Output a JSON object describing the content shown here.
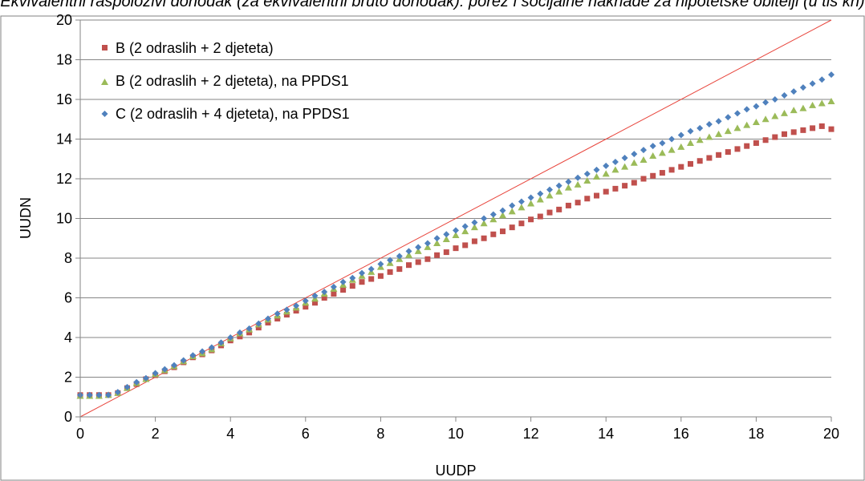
{
  "chart_data": {
    "type": "scatter",
    "title": "Ekvivalentni raspoloživi dohodak (za ekvivalentni bruto dohodak): porez i socijalne naknade za hipotetske obitelji (u tis kn)",
    "xlabel": "UUDP",
    "ylabel": "UUDN",
    "xlim": [
      0,
      20
    ],
    "ylim": [
      0,
      20
    ],
    "x_ticks": [
      "0",
      "2",
      "4",
      "6",
      "8",
      "10",
      "12",
      "14",
      "16",
      "18",
      "20"
    ],
    "y_ticks": [
      "0",
      "2",
      "4",
      "6",
      "8",
      "10",
      "12",
      "14",
      "16",
      "18",
      "20"
    ],
    "grid": "horizontal",
    "legend_position": "top-left",
    "reference_line": {
      "from": [
        0,
        0
      ],
      "to": [
        20,
        20
      ],
      "color": "#e8453c"
    },
    "series": [
      {
        "name": "B (2 odraslih + 2 djeteta)",
        "marker": "square",
        "color": "#c0504d",
        "x": [
          0,
          0.25,
          0.5,
          0.75,
          1,
          1.25,
          1.5,
          1.75,
          2,
          2.25,
          2.5,
          2.75,
          3,
          3.25,
          3.5,
          3.75,
          4,
          4.25,
          4.5,
          4.75,
          5,
          5.25,
          5.5,
          5.75,
          6,
          6.25,
          6.5,
          6.75,
          7,
          7.25,
          7.5,
          7.75,
          8,
          8.25,
          8.5,
          8.75,
          9,
          9.25,
          9.5,
          9.75,
          10,
          10.25,
          10.5,
          10.75,
          11,
          11.25,
          11.5,
          11.75,
          12,
          12.25,
          12.5,
          12.75,
          13,
          13.25,
          13.5,
          13.75,
          14,
          14.25,
          14.5,
          14.75,
          15,
          15.25,
          15.5,
          15.75,
          16,
          16.25,
          16.5,
          16.75,
          17,
          17.25,
          17.5,
          17.75,
          18,
          18.25,
          18.5,
          18.75,
          19,
          19.25,
          19.5,
          19.75,
          20
        ],
        "y": [
          1.1,
          1.1,
          1.1,
          1.1,
          1.2,
          1.45,
          1.65,
          1.9,
          2.1,
          2.3,
          2.5,
          2.75,
          3.0,
          3.15,
          3.35,
          3.6,
          3.85,
          4.05,
          4.25,
          4.5,
          4.75,
          4.95,
          5.15,
          5.35,
          5.55,
          5.75,
          6.0,
          6.2,
          6.4,
          6.6,
          6.8,
          6.95,
          7.1,
          7.3,
          7.45,
          7.65,
          7.8,
          7.95,
          8.15,
          8.3,
          8.5,
          8.65,
          8.85,
          9.0,
          9.2,
          9.35,
          9.55,
          9.75,
          9.95,
          10.1,
          10.3,
          10.45,
          10.65,
          10.8,
          11.0,
          11.15,
          11.35,
          11.5,
          11.65,
          11.8,
          12.0,
          12.15,
          12.3,
          12.45,
          12.6,
          12.75,
          12.9,
          13.05,
          13.2,
          13.35,
          13.5,
          13.65,
          13.8,
          13.95,
          14.1,
          14.25,
          14.35,
          14.45,
          14.55,
          14.65,
          14.5
        ]
      },
      {
        "name": "B (2 odraslih + 2 djeteta), na PPDS1",
        "marker": "triangle",
        "color": "#9bbb59",
        "x": [
          0,
          0.25,
          0.5,
          0.75,
          1,
          1.25,
          1.5,
          1.75,
          2,
          2.25,
          2.5,
          2.75,
          3,
          3.25,
          3.5,
          3.75,
          4,
          4.25,
          4.5,
          4.75,
          5,
          5.25,
          5.5,
          5.75,
          6,
          6.25,
          6.5,
          6.75,
          7,
          7.25,
          7.5,
          7.75,
          8,
          8.25,
          8.5,
          8.75,
          9,
          9.25,
          9.5,
          9.75,
          10,
          10.25,
          10.5,
          10.75,
          11,
          11.25,
          11.5,
          11.75,
          12,
          12.25,
          12.5,
          12.75,
          13,
          13.25,
          13.5,
          13.75,
          14,
          14.25,
          14.5,
          14.75,
          15,
          15.25,
          15.5,
          15.75,
          16,
          16.25,
          16.5,
          16.75,
          17,
          17.25,
          17.5,
          17.75,
          18,
          18.25,
          18.5,
          18.75,
          19,
          19.25,
          19.5,
          19.75,
          20
        ],
        "y": [
          1.05,
          1.05,
          1.05,
          1.1,
          1.2,
          1.45,
          1.7,
          1.9,
          2.15,
          2.35,
          2.55,
          2.8,
          3.05,
          3.2,
          3.4,
          3.7,
          3.95,
          4.2,
          4.4,
          4.65,
          4.9,
          5.1,
          5.3,
          5.5,
          5.75,
          5.95,
          6.2,
          6.45,
          6.65,
          6.9,
          7.1,
          7.3,
          7.55,
          7.75,
          7.95,
          8.15,
          8.35,
          8.55,
          8.75,
          8.95,
          9.15,
          9.35,
          9.55,
          9.75,
          9.95,
          10.15,
          10.35,
          10.55,
          10.75,
          10.95,
          11.15,
          11.35,
          11.55,
          11.7,
          11.9,
          12.1,
          12.25,
          12.45,
          12.6,
          12.8,
          12.95,
          13.15,
          13.3,
          13.45,
          13.6,
          13.8,
          13.95,
          14.1,
          14.25,
          14.4,
          14.55,
          14.7,
          14.85,
          15.0,
          15.15,
          15.3,
          15.45,
          15.55,
          15.7,
          15.8,
          15.9
        ]
      },
      {
        "name": "C (2 odraslih + 4 djeteta), na PPDS1",
        "marker": "diamond",
        "color": "#4f81bd",
        "x": [
          0,
          0.25,
          0.5,
          0.75,
          1,
          1.25,
          1.5,
          1.75,
          2,
          2.25,
          2.5,
          2.75,
          3,
          3.25,
          3.5,
          3.75,
          4,
          4.25,
          4.5,
          4.75,
          5,
          5.25,
          5.5,
          5.75,
          6,
          6.25,
          6.5,
          6.75,
          7,
          7.25,
          7.5,
          7.75,
          8,
          8.25,
          8.5,
          8.75,
          9,
          9.25,
          9.5,
          9.75,
          10,
          10.25,
          10.5,
          10.75,
          11,
          11.25,
          11.5,
          11.75,
          12,
          12.25,
          12.5,
          12.75,
          13,
          13.25,
          13.5,
          13.75,
          14,
          14.25,
          14.5,
          14.75,
          15,
          15.25,
          15.5,
          15.75,
          16,
          16.25,
          16.5,
          16.75,
          17,
          17.25,
          17.5,
          17.75,
          18,
          18.25,
          18.5,
          18.75,
          19,
          19.25,
          19.5,
          19.75,
          20
        ],
        "y": [
          1.1,
          1.1,
          1.1,
          1.1,
          1.25,
          1.5,
          1.75,
          1.95,
          2.2,
          2.4,
          2.6,
          2.85,
          3.1,
          3.3,
          3.5,
          3.75,
          4.0,
          4.25,
          4.45,
          4.7,
          4.95,
          5.2,
          5.4,
          5.6,
          5.85,
          6.1,
          6.3,
          6.55,
          6.8,
          7.0,
          7.25,
          7.45,
          7.7,
          7.9,
          8.1,
          8.35,
          8.55,
          8.75,
          9.0,
          9.2,
          9.4,
          9.6,
          9.8,
          10.0,
          10.2,
          10.4,
          10.65,
          10.85,
          11.05,
          11.25,
          11.45,
          11.65,
          11.85,
          12.05,
          12.25,
          12.45,
          12.65,
          12.85,
          13.05,
          13.25,
          13.45,
          13.65,
          13.8,
          14.0,
          14.2,
          14.4,
          14.55,
          14.75,
          14.9,
          15.1,
          15.3,
          15.5,
          15.65,
          15.85,
          16.0,
          16.2,
          16.4,
          16.6,
          16.8,
          17.0,
          17.25
        ]
      }
    ]
  }
}
